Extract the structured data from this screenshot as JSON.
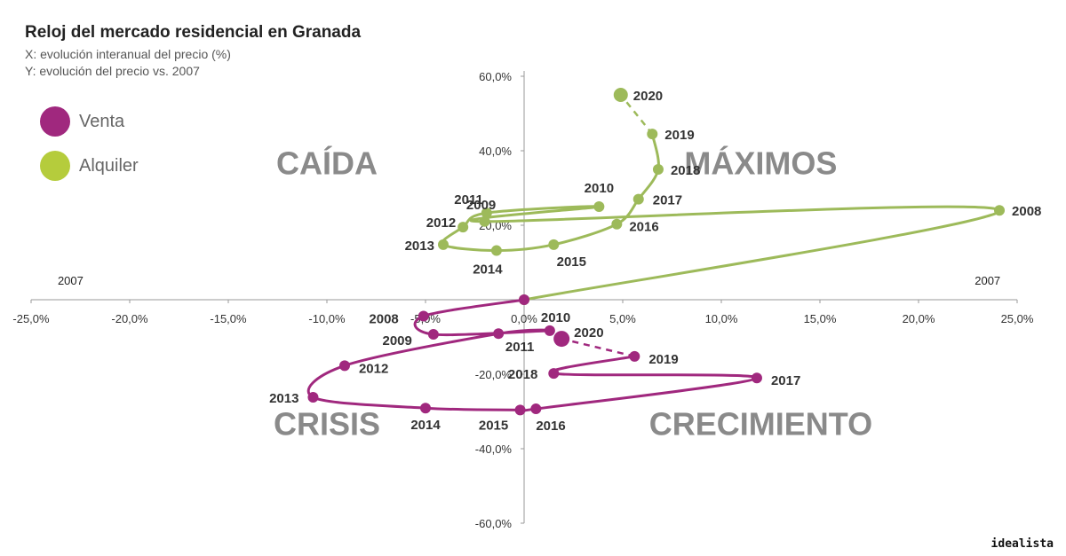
{
  "chart_data": {
    "type": "line",
    "title": "Reloj del mercado residencial en Granada",
    "subtitle_x": "X: evolución interanual del precio (%)",
    "subtitle_y": "Y: evolución del precio vs. 2007",
    "xlim": [
      -25,
      25
    ],
    "ylim": [
      -60,
      60
    ],
    "x_ticks": [
      {
        "v": -25,
        "label": "-25,0%"
      },
      {
        "v": -20,
        "label": "-20,0%"
      },
      {
        "v": -15,
        "label": "-15,0%"
      },
      {
        "v": -10,
        "label": "-10,0%"
      },
      {
        "v": -5,
        "label": "-5,0%"
      },
      {
        "v": 0,
        "label": "0,0%"
      },
      {
        "v": 5,
        "label": "5,0%"
      },
      {
        "v": 10,
        "label": "10,0%"
      },
      {
        "v": 15,
        "label": "15,0%"
      },
      {
        "v": 20,
        "label": "20,0%"
      },
      {
        "v": 25,
        "label": "25,0%"
      }
    ],
    "y_ticks": [
      {
        "v": 60,
        "label": "60,0%"
      },
      {
        "v": 40,
        "label": "40,0%"
      },
      {
        "v": 20,
        "label": "20,0%"
      },
      {
        "v": -20,
        "label": "-20,0%"
      },
      {
        "v": -40,
        "label": "-40,0%"
      },
      {
        "v": -60,
        "label": "-60,0%"
      }
    ],
    "quadrants": [
      {
        "label": "CAÍDA",
        "x": -10,
        "y": 36
      },
      {
        "label": "MÁXIMOS",
        "x": 12,
        "y": 36
      },
      {
        "label": "CRISIS",
        "x": -10,
        "y": -34
      },
      {
        "label": "CRECIMIENTO",
        "x": 12,
        "y": -34
      }
    ],
    "axis_notes": [
      {
        "label": "2007",
        "x": -23,
        "y": 4
      },
      {
        "label": "2007",
        "x": 23.5,
        "y": 4
      }
    ],
    "legend": [
      {
        "name": "Venta",
        "color": "#a0287e"
      },
      {
        "name": "Alquiler",
        "color": "#b5cc3c"
      }
    ],
    "series": [
      {
        "name": "Alquiler",
        "color": "#9dba5a",
        "points": [
          {
            "label": "",
            "x": 0.0,
            "y": 0.0
          },
          {
            "label": "2008",
            "x": 24.1,
            "y": 24.0
          },
          {
            "label": "2009",
            "x": -2.0,
            "y": 21.0
          },
          {
            "label": "2010",
            "x": 3.8,
            "y": 25.0
          },
          {
            "label": "2011",
            "x": -1.9,
            "y": 23.3
          },
          {
            "label": "2012",
            "x": -3.1,
            "y": 19.5
          },
          {
            "label": "2013",
            "x": -4.1,
            "y": 14.8
          },
          {
            "label": "2014",
            "x": -1.4,
            "y": 13.2
          },
          {
            "label": "2015",
            "x": 1.5,
            "y": 14.8
          },
          {
            "label": "2016",
            "x": 4.7,
            "y": 20.3
          },
          {
            "label": "2017",
            "x": 5.8,
            "y": 27.0
          },
          {
            "label": "2018",
            "x": 6.8,
            "y": 35.0
          },
          {
            "label": "2019",
            "x": 6.5,
            "y": 44.5
          },
          {
            "label": "2020",
            "x": 4.9,
            "y": 55.0
          }
        ]
      },
      {
        "name": "Venta",
        "color": "#a0287e",
        "points": [
          {
            "label": "",
            "x": 0.0,
            "y": 0.0
          },
          {
            "label": "2008",
            "x": -5.1,
            "y": -4.4
          },
          {
            "label": "2009",
            "x": -4.6,
            "y": -9.3
          },
          {
            "label": "2010",
            "x": 1.3,
            "y": -8.3
          },
          {
            "label": "2011",
            "x": -1.3,
            "y": -9.1
          },
          {
            "label": "2012",
            "x": -9.1,
            "y": -17.7
          },
          {
            "label": "2013",
            "x": -10.7,
            "y": -26.2
          },
          {
            "label": "2014",
            "x": -5.0,
            "y": -29.1
          },
          {
            "label": "2015",
            "x": -0.2,
            "y": -29.6
          },
          {
            "label": "2016",
            "x": 0.6,
            "y": -29.3
          },
          {
            "label": "2017",
            "x": 11.8,
            "y": -21.0
          },
          {
            "label": "2018",
            "x": 1.5,
            "y": -19.8
          },
          {
            "label": "2019",
            "x": 5.6,
            "y": -15.2
          },
          {
            "label": "2020",
            "x": 1.9,
            "y": -10.5
          }
        ]
      }
    ]
  },
  "brand": "idealista"
}
